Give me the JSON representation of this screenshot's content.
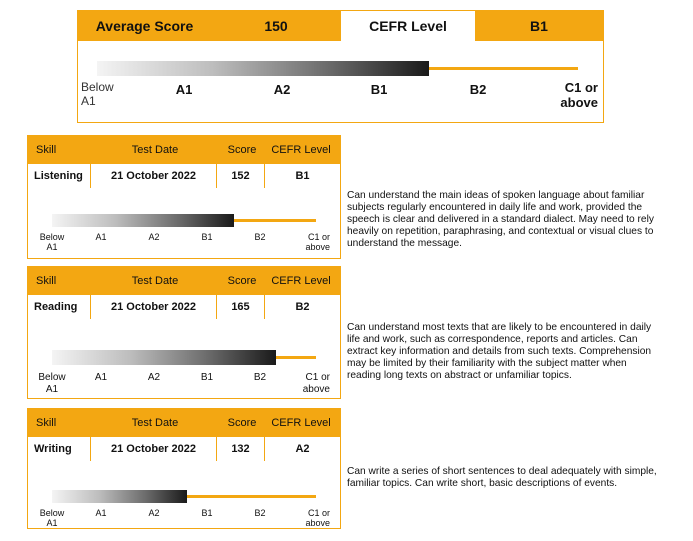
{
  "summary": {
    "average_label": "Average Score",
    "average_value": "150",
    "cefr_label": "CEFR Level",
    "cefr_value": "B1",
    "scale": [
      "Below\nA1",
      "A1",
      "A2",
      "B1",
      "B2",
      "C1 or\nabove"
    ],
    "level_fraction": 0.69
  },
  "columns": {
    "skill": "Skill",
    "test_date": "Test Date",
    "score": "Score",
    "cefr": "CEFR Level"
  },
  "scale_small": {
    "below_a1": "Below\nA1",
    "a1": "A1",
    "a2": "A2",
    "b1": "B1",
    "b2": "B2",
    "c1": "C1 or\nabove"
  },
  "skills": [
    {
      "name": "Listening",
      "date": "21 October 2022",
      "score": "152",
      "level": "B1",
      "level_fraction": 0.69,
      "description": "Can understand the main ideas of spoken language about familiar subjects regularly encountered in daily life and work, provided the speech is clear and delivered in a standard dialect. May need to rely heavily on repetition, paraphrasing, and contextual or visual clues to understand the message."
    },
    {
      "name": "Reading",
      "date": "21 October 2022",
      "score": "165",
      "level": "B2",
      "level_fraction": 0.85,
      "description": "Can understand most texts that are likely to be encountered in daily life and work, such as correspondence, reports and articles. Can extract key information and details from such texts. Comprehension may be limited by their familiarity with the subject matter when reading long texts on abstract or unfamiliar topics."
    },
    {
      "name": "Writing",
      "date": "21 October 2022",
      "score": "132",
      "level": "A2",
      "level_fraction": 0.51,
      "description": "Can write a series of short sentences to deal adequately with simple, familiar topics. Can write short, basic descriptions of events."
    }
  ]
}
